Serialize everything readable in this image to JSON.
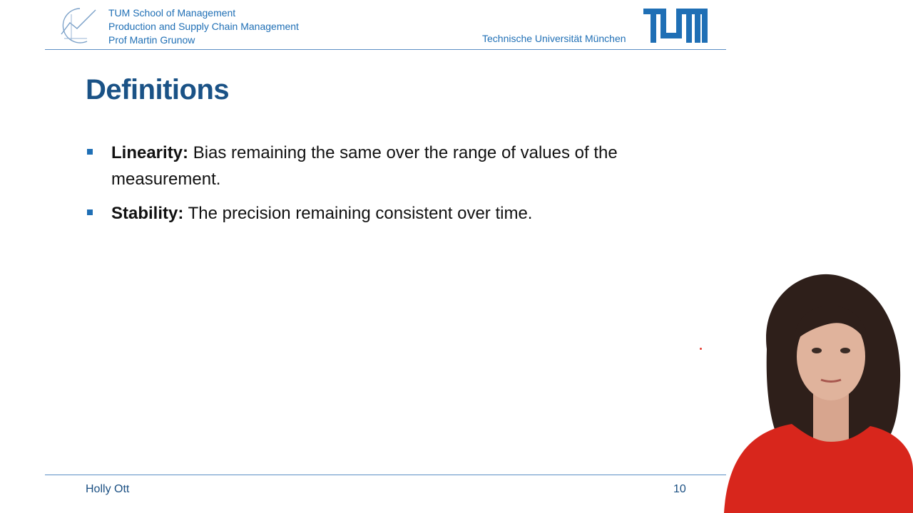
{
  "header": {
    "school": "TUM School of Management",
    "chair": "Production and Supply Chain Management",
    "professor": "Prof Martin Grunow",
    "university": "Technische Universität München",
    "accent_color": "#1f6fb5"
  },
  "slide": {
    "title": "Definitions",
    "bullets": [
      {
        "term": "Linearity:",
        "text": "Bias remaining the same over the range of values of  the measurement."
      },
      {
        "term": "Stability:",
        "text": "The precision remaining consistent over time."
      }
    ]
  },
  "footer": {
    "author": "Holly Ott",
    "page_number": "10"
  },
  "icons": {
    "chair_logo": "chart-line-logo-icon",
    "university_logo": "tum-logo-icon"
  },
  "presenter": {
    "shirt_color": "#d8261c"
  }
}
